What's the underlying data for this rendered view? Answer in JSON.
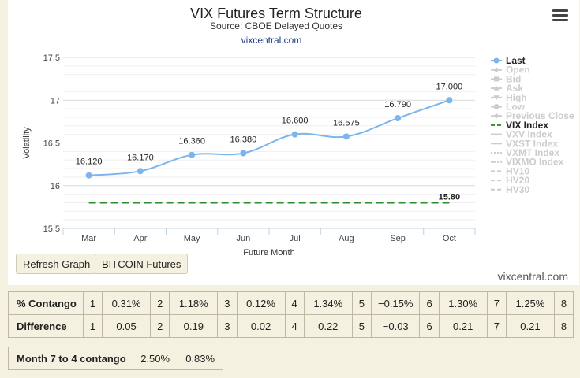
{
  "chart_data": {
    "type": "line",
    "title": "VIX Futures Term Structure",
    "subtitle": "Source: CBOE Delayed Quotes",
    "site_link": "vixcentral.com",
    "xlabel": "Future Month",
    "ylabel": "Volatility",
    "categories": [
      "Mar",
      "Apr",
      "May",
      "Jun",
      "Jul",
      "Aug",
      "Sep",
      "Oct"
    ],
    "yticks": [
      "15.5",
      "16",
      "16.5",
      "17",
      "17.5"
    ],
    "ylim": [
      15.5,
      17.5
    ],
    "grid": true,
    "legend_position": "right",
    "series": [
      {
        "name": "Last",
        "color": "#7cb5ec",
        "values": [
          16.12,
          16.17,
          16.36,
          16.38,
          16.6,
          16.575,
          16.79,
          17.0
        ],
        "labels": [
          "16.120",
          "16.170",
          "16.360",
          "16.380",
          "16.600",
          "16.575",
          "16.790",
          "17.000"
        ]
      },
      {
        "name": "VIX Index",
        "color": "#2e8b2e",
        "style": "dashed",
        "values": [
          15.8,
          15.8,
          15.8,
          15.8,
          15.8,
          15.8,
          15.8,
          15.8
        ],
        "end_label": "15.80"
      }
    ],
    "legend": [
      {
        "label": "Last",
        "active": true,
        "color": "#7cb5ec",
        "icon": "line-dot-icon"
      },
      {
        "label": "Open",
        "active": false,
        "color": "#cccccc",
        "icon": "line-diamond-icon"
      },
      {
        "label": "Bid",
        "active": false,
        "color": "#cccccc",
        "icon": "line-square-icon"
      },
      {
        "label": "Ask",
        "active": false,
        "color": "#cccccc",
        "icon": "line-triangle-icon"
      },
      {
        "label": "High",
        "active": false,
        "color": "#cccccc",
        "icon": "line-triangle-down-icon"
      },
      {
        "label": "Low",
        "active": false,
        "color": "#cccccc",
        "icon": "line-dot-icon"
      },
      {
        "label": "Previous Close",
        "active": false,
        "color": "#cccccc",
        "icon": "line-diamond-icon"
      },
      {
        "label": "VIX Index",
        "active": true,
        "color": "#2e8b2e",
        "icon": "line-dash-icon"
      },
      {
        "label": "VXV Index",
        "active": false,
        "color": "#cccccc",
        "icon": "line-icon"
      },
      {
        "label": "VXST Index",
        "active": false,
        "color": "#cccccc",
        "icon": "line-icon"
      },
      {
        "label": "VXMT Index",
        "active": false,
        "color": "#cccccc",
        "icon": "line-dotted-icon"
      },
      {
        "label": "VIXMO Index",
        "active": false,
        "color": "#cccccc",
        "icon": "line-dashdot-icon"
      },
      {
        "label": "HV10",
        "active": false,
        "color": "#cccccc",
        "icon": "line-dash-icon"
      },
      {
        "label": "HV20",
        "active": false,
        "color": "#cccccc",
        "icon": "line-dash-icon"
      },
      {
        "label": "HV30",
        "active": false,
        "color": "#cccccc",
        "icon": "line-dash-icon"
      }
    ]
  },
  "buttons": {
    "refresh": "Refresh Graph",
    "bitcoin": "BITCOIN Futures"
  },
  "menu_icon": "hamburger-menu-icon",
  "credits": "vixcentral.com",
  "contango_table": {
    "rows": [
      {
        "header": "% Contango",
        "cells": [
          "1",
          "0.31%",
          "2",
          "1.18%",
          "3",
          "0.12%",
          "4",
          "1.34%",
          "5",
          "−0.15%",
          "6",
          "1.30%",
          "7",
          "1.25%",
          "8"
        ]
      },
      {
        "header": "Difference",
        "cells": [
          "1",
          "0.05",
          "2",
          "0.19",
          "3",
          "0.02",
          "4",
          "0.22",
          "5",
          "−0.03",
          "6",
          "0.21",
          "7",
          "0.21",
          "8"
        ]
      }
    ]
  },
  "summary_table": {
    "label": "Month 7 to 4 contango",
    "values": [
      "2.50%",
      "0.83%"
    ]
  }
}
